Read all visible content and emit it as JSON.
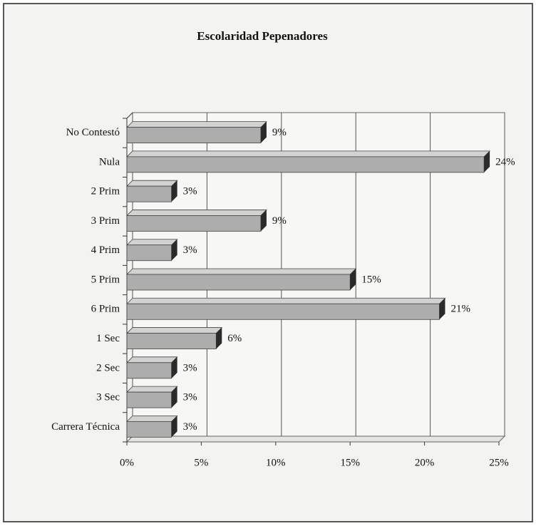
{
  "chart_data": {
    "type": "bar",
    "orientation": "horizontal",
    "title": "Escolaridad Pepenadores",
    "categories": [
      "No Contestó",
      "Nula",
      "2 Prim",
      "3 Prim",
      "4 Prim",
      "5 Prim",
      "6 Prim",
      "1 Sec",
      "2 Sec",
      "3 Sec",
      "Carrera Técnica"
    ],
    "values": [
      9,
      24,
      3,
      9,
      3,
      15,
      21,
      6,
      3,
      3,
      3
    ],
    "value_labels": [
      "9%",
      "24%",
      "3%",
      "9%",
      "3%",
      "15%",
      "21%",
      "6%",
      "3%",
      "3%",
      "3%"
    ],
    "color": "#adadad",
    "xlim": [
      0,
      25
    ],
    "xticks": [
      {
        "value": 0,
        "label": "0%"
      },
      {
        "value": 5,
        "label": "5%"
      },
      {
        "value": 10,
        "label": "10%"
      },
      {
        "value": 15,
        "label": "15%"
      },
      {
        "value": 20,
        "label": "20%"
      },
      {
        "value": 25,
        "label": "25%"
      }
    ],
    "grid": true
  }
}
